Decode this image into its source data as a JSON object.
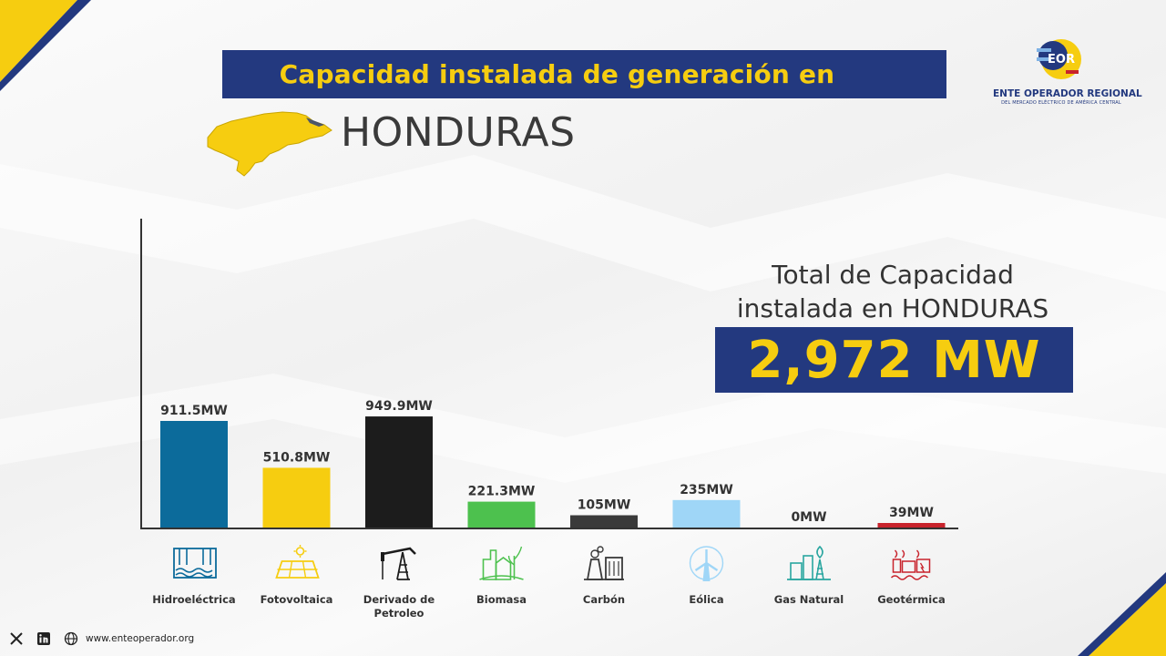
{
  "header": {
    "title": "Capacidad instalada de generación en",
    "country": "HONDURAS"
  },
  "logo": {
    "text": "EOR",
    "name": "ENTE OPERADOR REGIONAL",
    "subtitle": "DEL MERCADO ELÉCTRICO DE AMÉRICA CENTRAL"
  },
  "total": {
    "label_line1": "Total de Capacidad",
    "label_line2": "instalada en HONDURAS",
    "value": "2,972 MW"
  },
  "colors": {
    "navy": "#23397f",
    "yellow": "#f6cd10"
  },
  "chart_data": {
    "type": "bar",
    "categories": [
      "Hidroeléctrica",
      "Fotovoltaica",
      "Derivado de Petroleo",
      "Biomasa",
      "Carbón",
      "Eólica",
      "Gas Natural",
      "Geotérmica"
    ],
    "category_lines": [
      [
        "Hidroeléctrica"
      ],
      [
        "Fotovoltaica"
      ],
      [
        "Derivado de",
        "Petroleo"
      ],
      [
        "Biomasa"
      ],
      [
        "Carbón"
      ],
      [
        "Eólica"
      ],
      [
        "Gas Natural"
      ],
      [
        "Geotérmica"
      ]
    ],
    "values": [
      911.5,
      510.8,
      949.9,
      221.3,
      105,
      235,
      0,
      39
    ],
    "value_labels": [
      "911.5MW",
      "510.8MW",
      "949.9MW",
      "221.3MW",
      "105MW",
      "235MW",
      "0MW",
      "39MW"
    ],
    "colors": [
      "#0c6b9b",
      "#f6cd10",
      "#1c1c1c",
      "#4dc14e",
      "#3a3a3a",
      "#9fd6f7",
      "#2aa6a0",
      "#c8232c"
    ],
    "icons": [
      "hydro-dam-icon",
      "solar-panel-icon",
      "oil-pump-icon",
      "biomass-plant-icon",
      "coal-plant-icon",
      "wind-turbine-icon",
      "gas-plant-icon",
      "geothermal-icon"
    ],
    "ylim": [
      0,
      1200
    ]
  },
  "footer": {
    "social": [
      "x-icon",
      "linkedin-icon"
    ],
    "website": "www.enteoperador.org"
  }
}
